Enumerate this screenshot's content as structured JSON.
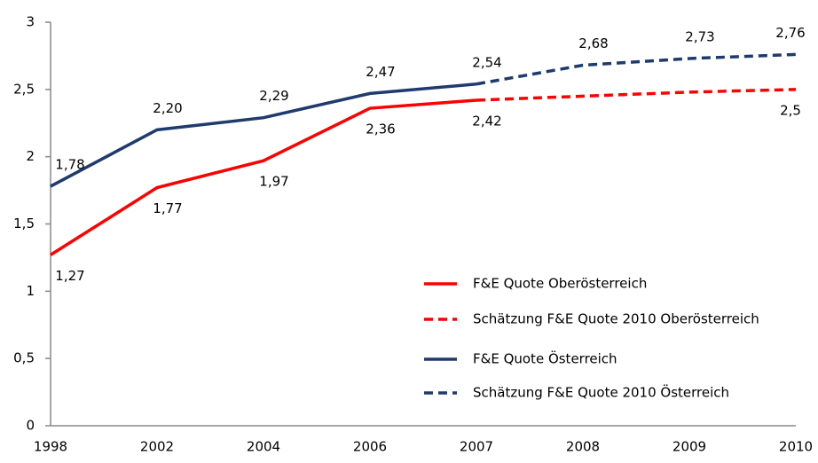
{
  "chart_data": {
    "type": "line",
    "categories": [
      "1998",
      "2002",
      "2004",
      "2006",
      "2007",
      "2008",
      "2009",
      "2010"
    ],
    "series": [
      {
        "name": "F&E Quote Oberösterreich",
        "color": "#ff0000",
        "dashed": false,
        "values": [
          1.27,
          1.77,
          1.97,
          2.36,
          2.42,
          null,
          null,
          null
        ],
        "value_labels": [
          "1,27",
          "1,77",
          "1,97",
          "2,36",
          "2,42",
          null,
          null,
          null
        ]
      },
      {
        "name": "Schätzung F&E Quote 2010 Oberösterreich",
        "color": "#ff0000",
        "dashed": true,
        "values": [
          null,
          null,
          null,
          null,
          2.42,
          2.45,
          2.48,
          2.5
        ],
        "value_labels": [
          null,
          null,
          null,
          null,
          null,
          null,
          null,
          "2,5"
        ]
      },
      {
        "name": "F&E Quote Österreich",
        "color": "#1f3b6e",
        "dashed": false,
        "values": [
          1.78,
          2.2,
          2.29,
          2.47,
          2.54,
          null,
          null,
          null
        ],
        "value_labels": [
          "1,78",
          "2,20",
          "2,29",
          "2,47",
          "2,54",
          null,
          null,
          null
        ]
      },
      {
        "name": "Schätzung F&E Quote 2010 Österreich",
        "color": "#1f3b6e",
        "dashed": true,
        "values": [
          null,
          null,
          null,
          null,
          2.54,
          2.68,
          2.73,
          2.76
        ],
        "value_labels": [
          null,
          null,
          null,
          null,
          null,
          "2,68",
          "2,73",
          "2,76"
        ]
      }
    ],
    "ylim": [
      0,
      3
    ],
    "yticks": [
      0,
      {
        "value": 0.5,
        "label": "0,5"
      },
      1,
      {
        "value": 1.5,
        "label": "1,5"
      },
      2,
      {
        "value": 2.5,
        "label": "2,5"
      },
      3
    ],
    "grid": false
  }
}
